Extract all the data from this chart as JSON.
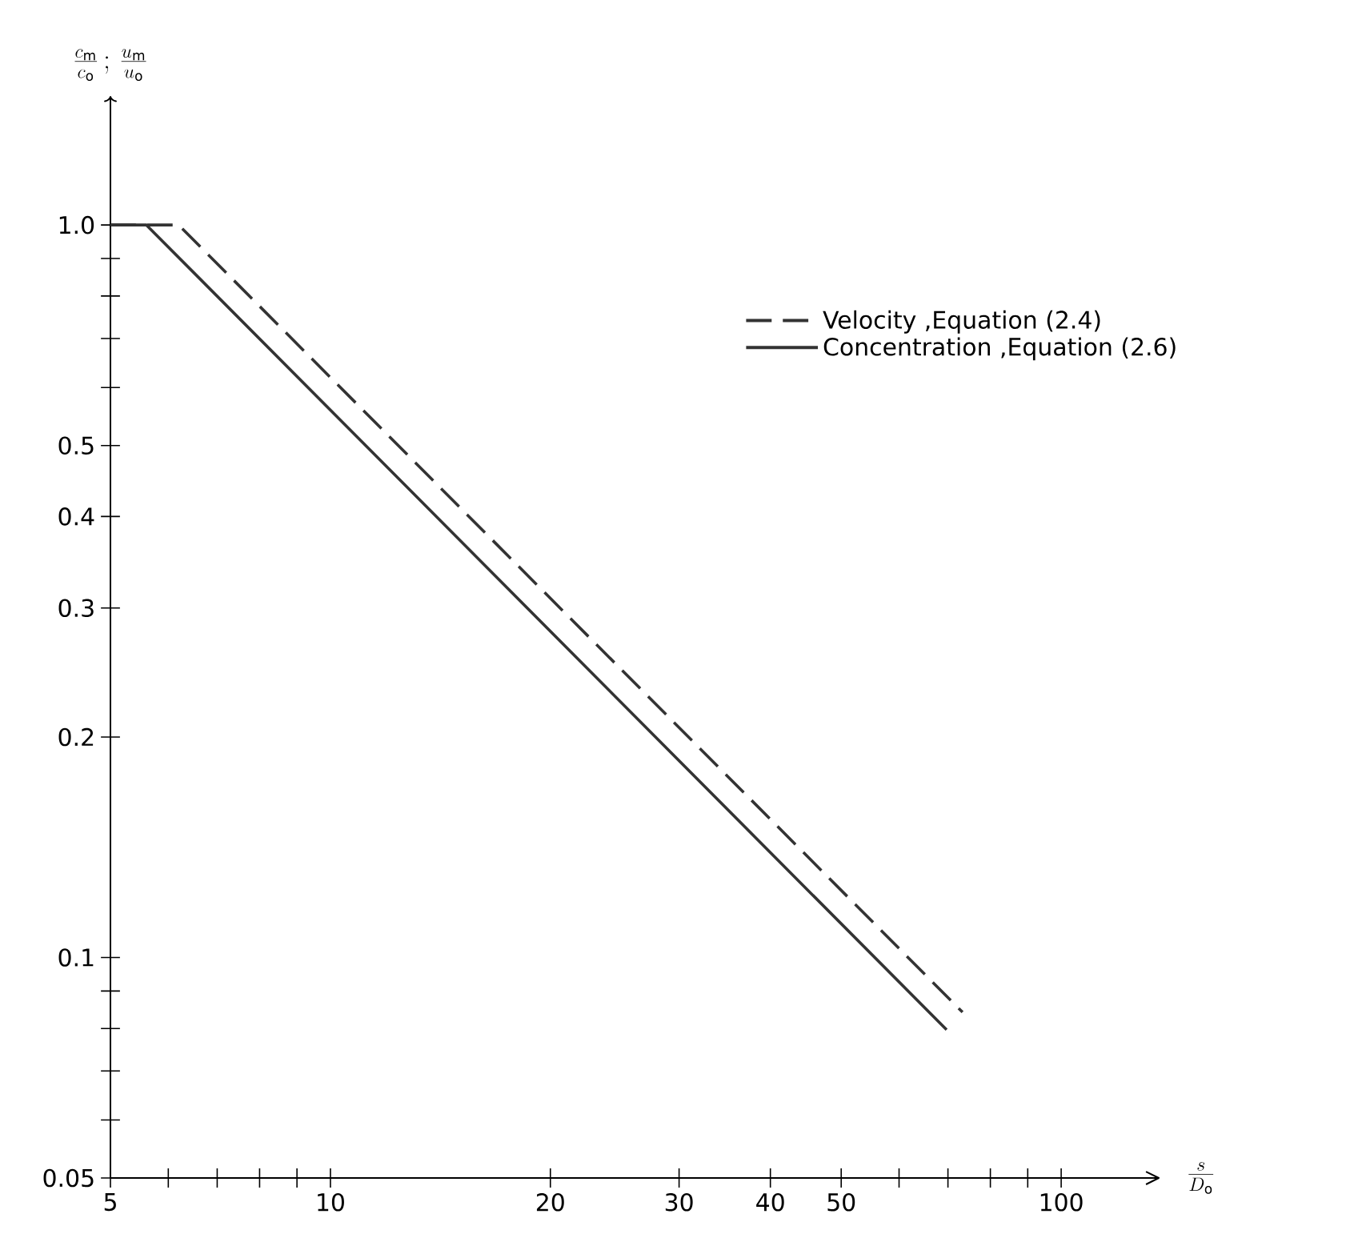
{
  "chart_data": {
    "type": "line",
    "xlabel": "\\frac{s}{D_{\\mathrm{o}}}",
    "ylabel": "\\frac{c_{\\mathrm{m}}}{c_{\\mathrm{o}}}\\,;\\,\\frac{u_{\\mathrm{m}}}{u_{\\mathrm{o}}}",
    "log": "xy",
    "xlim": [
      5,
      136
    ],
    "ylim": [
      0.05,
      1.5
    ],
    "xticks": [
      5,
      {
        "value": 6,
        "label": null
      },
      {
        "value": 7,
        "label": null
      },
      {
        "value": 8,
        "label": null
      },
      {
        "value": 9,
        "label": null
      },
      10,
      20,
      30,
      40,
      50,
      {
        "value": 60,
        "label": null
      },
      {
        "value": 70,
        "label": null
      },
      {
        "value": 80,
        "label": null
      },
      {
        "value": 90,
        "label": null
      },
      100
    ],
    "yticks": [
      0.05,
      {
        "value": 0.06,
        "label": null
      },
      {
        "value": 0.07,
        "label": null
      },
      {
        "value": 0.08,
        "label": null
      },
      {
        "value": 0.09,
        "label": null
      },
      0.1,
      0.2,
      0.3,
      0.4,
      0.5,
      {
        "value": 0.6,
        "label": null
      },
      {
        "value": 0.7,
        "label": null
      },
      {
        "value": 0.8,
        "label": null
      },
      {
        "value": 0.9,
        "label": null
      },
      {
        "value": 1,
        "label": "1.0"
      }
    ],
    "legend": "right",
    "grid": false,
    "marker": "none",
    "series": [
      {
        "name": "Velocity ,Equation (2.4)",
        "color": "#333333",
        "line_style": "dashed",
        "x": [
          5,
          6.2,
          73.3
        ],
        "values": [
          1,
          1,
          0.0842
        ]
      },
      {
        "name": "Concentration ,Equation (2.6)",
        "color": "#333333",
        "line_style": "solid",
        "x": [
          5,
          5.6,
          69.7
        ],
        "values": [
          1,
          1,
          0.0797
        ]
      }
    ]
  }
}
